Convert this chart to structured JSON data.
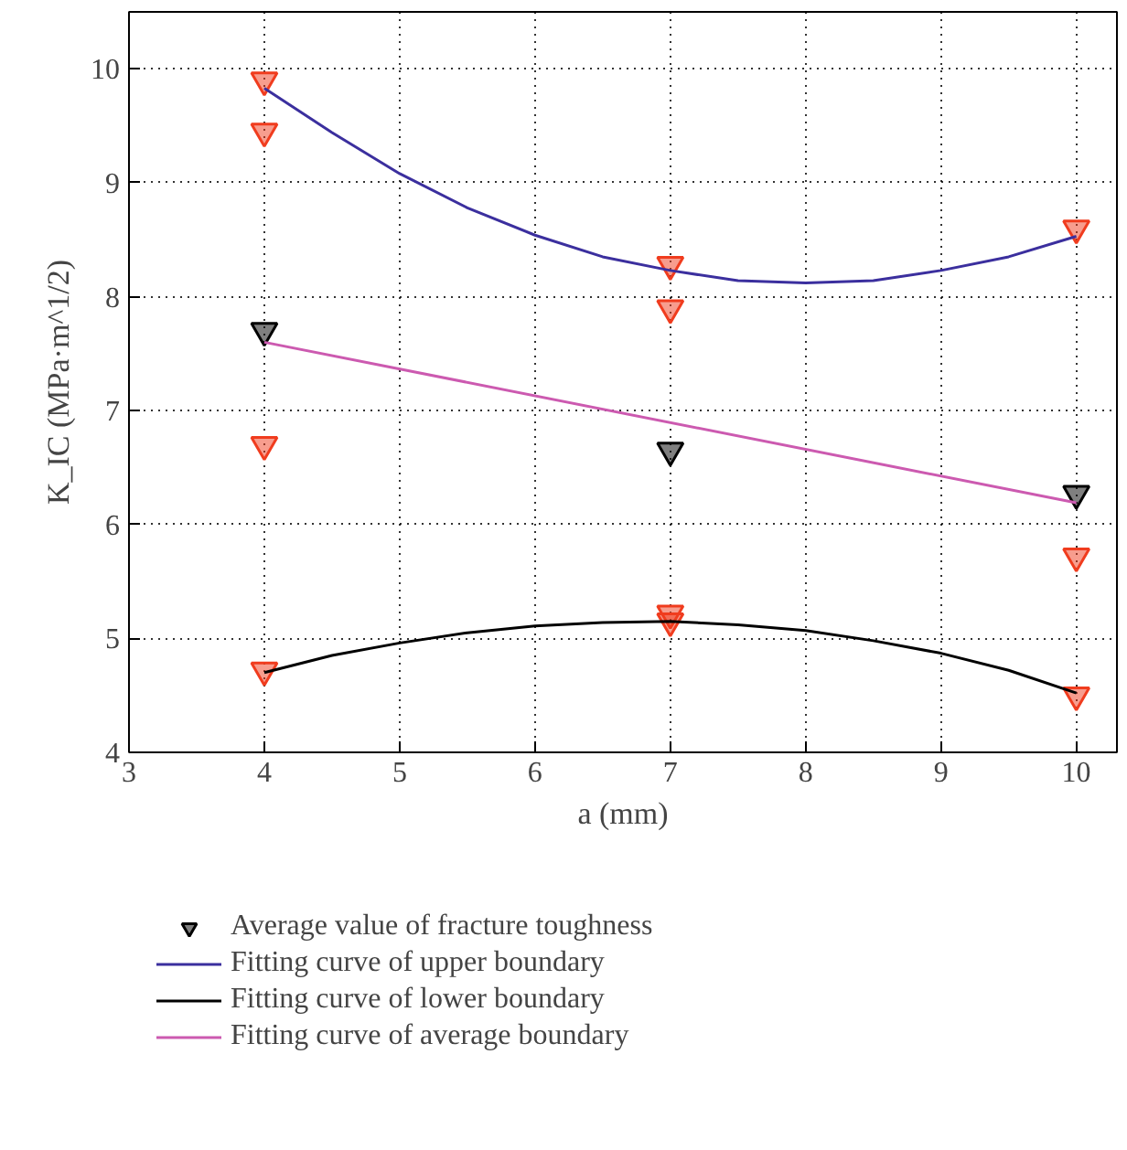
{
  "chart_data": {
    "type": "scatter",
    "xlabel": "a (mm)",
    "ylabel": "K_IC (MPa·m^1/2)",
    "xlim": [
      3,
      10.3
    ],
    "ylim": [
      4,
      10.5
    ],
    "xticks": [
      3,
      4,
      5,
      6,
      7,
      8,
      9,
      10
    ],
    "yticks": [
      4,
      5,
      6,
      7,
      8,
      9,
      10
    ],
    "grid": true,
    "legend": "bottom",
    "series": [
      {
        "color": "#f03c1e",
        "marker": "triangle",
        "x": [
          4,
          4,
          4,
          4,
          7,
          7,
          7,
          7,
          10,
          10,
          10
        ],
        "values": [
          9.9,
          9.45,
          6.7,
          4.72,
          8.28,
          7.9,
          5.22,
          5.15,
          8.6,
          5.72,
          4.5
        ]
      },
      {
        "name": "Average value of fracture toughness",
        "marker": "triangle",
        "color": "#000000",
        "x": [
          4,
          7,
          10
        ],
        "values": [
          7.7,
          6.65,
          6.27
        ]
      },
      {
        "name": "Fitting curve of upper boundary",
        "type": "line",
        "marker": "none",
        "color": "#3b2f9e",
        "x": [
          4,
          4.5,
          5,
          5.5,
          6,
          6.5,
          7,
          7.5,
          8,
          8.5,
          9,
          9.5,
          10
        ],
        "values": [
          9.83,
          9.44,
          9.08,
          8.78,
          8.54,
          8.35,
          8.23,
          8.14,
          8.12,
          8.14,
          8.23,
          8.35,
          8.53
        ]
      },
      {
        "name": "Fitting curve of lower boundary",
        "type": "line",
        "marker": "none",
        "color": "#000000",
        "x": [
          4,
          4.5,
          5,
          5.5,
          6,
          6.5,
          7,
          7.5,
          8,
          8.5,
          9,
          9.5,
          10
        ],
        "values": [
          4.7,
          4.85,
          4.96,
          5.05,
          5.11,
          5.14,
          5.15,
          5.12,
          5.07,
          4.98,
          4.87,
          4.72,
          4.52
        ]
      },
      {
        "name": "Fitting curve of average boundary",
        "type": "line",
        "marker": "none",
        "color": "#cc5ab0",
        "x": [
          4,
          10
        ],
        "values": [
          7.6,
          6.19
        ]
      }
    ]
  }
}
